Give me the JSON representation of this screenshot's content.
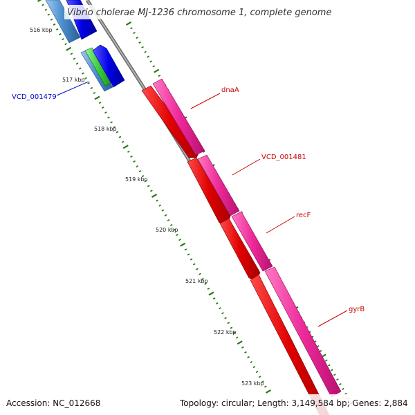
{
  "title": "Vibrio cholerae MJ-1236 chromosome 1, complete genome",
  "footer": {
    "accession": "Accession: NC_012668",
    "summary": "Topology: circular; Length: 3,149,584 bp; Genes: 2,884"
  },
  "ticks": [
    "516 kbp",
    "517 kbp",
    "518 kbp",
    "519 kbp",
    "520 kbp",
    "521 kbp",
    "522 kbp",
    "523 kbp"
  ],
  "genes": [
    {
      "name": "VCD_001479",
      "color": "#0000cc"
    },
    {
      "name": "dnaA",
      "color": "#cc0000"
    },
    {
      "name": "VCD_001481",
      "color": "#cc0000"
    },
    {
      "name": "recF",
      "color": "#cc0000"
    },
    {
      "name": "gyrB",
      "color": "#cc0000"
    }
  ],
  "colors": {
    "backbone": "#8c8c8c",
    "tick": "#2a7a14",
    "cds_forward_blue": "#0a0ae6",
    "cds_forward_red": "#f01010",
    "gene_track": "#ee2a9a",
    "blue_gene_track": "#3f85c4",
    "green_feature": "#33cc33"
  }
}
